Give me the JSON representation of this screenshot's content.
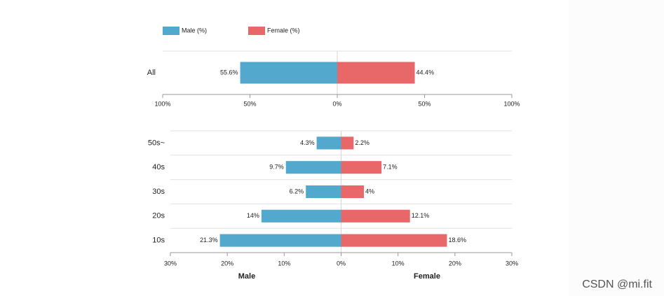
{
  "chart_data": [
    {
      "type": "butterfly",
      "legend": true,
      "categories": [
        "All"
      ],
      "series": [
        {
          "name": "Male (%)",
          "color": "#53a8cd",
          "side": "left",
          "values": [
            55.6
          ],
          "value_labels": [
            "55.6%"
          ]
        },
        {
          "name": "Female (%)",
          "color": "#e8686a",
          "side": "right",
          "values": [
            44.4
          ],
          "value_labels": [
            "44.4%"
          ]
        }
      ],
      "xlim": [
        -100,
        100
      ],
      "xticks": [
        {
          "value": -100,
          "label": "100%"
        },
        {
          "value": -50,
          "label": "50%"
        },
        {
          "value": 0,
          "label": "0%"
        },
        {
          "value": 50,
          "label": "50%"
        },
        {
          "value": 100,
          "label": "100%"
        }
      ],
      "grid": true
    },
    {
      "type": "butterfly",
      "legend": false,
      "categories": [
        "50s~",
        "40s",
        "30s",
        "20s",
        "10s"
      ],
      "series": [
        {
          "name": "Male",
          "color": "#53a8cd",
          "side": "left",
          "values": [
            4.3,
            9.7,
            6.2,
            14,
            21.3
          ],
          "value_labels": [
            "4.3%",
            "9.7%",
            "6.2%",
            "14%",
            "21.3%"
          ]
        },
        {
          "name": "Female",
          "color": "#e8686a",
          "side": "right",
          "values": [
            2.2,
            7.1,
            4,
            12.1,
            18.6
          ],
          "value_labels": [
            "2.2%",
            "7.1%",
            "4%",
            "12.1%",
            "18.6%"
          ]
        }
      ],
      "xlim": [
        -30,
        30
      ],
      "xticks": [
        {
          "value": -30,
          "label": "30%"
        },
        {
          "value": -20,
          "label": "20%"
        },
        {
          "value": -10,
          "label": "10%"
        },
        {
          "value": 0,
          "label": "0%"
        },
        {
          "value": 10,
          "label": "10%"
        },
        {
          "value": 20,
          "label": "20%"
        },
        {
          "value": 30,
          "label": "30%"
        }
      ],
      "grid": true
    }
  ],
  "watermark": "CSDN @mi.fit"
}
